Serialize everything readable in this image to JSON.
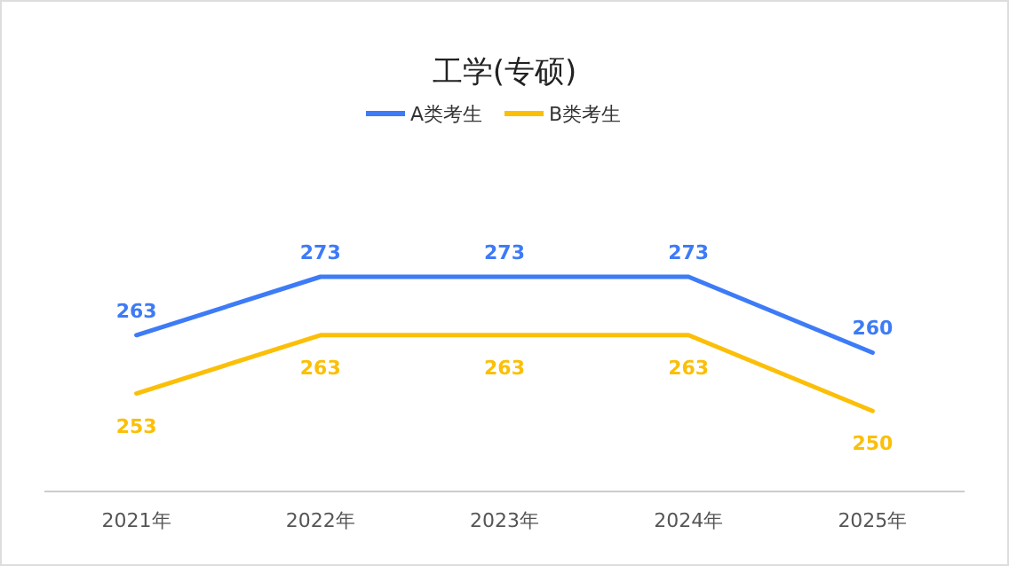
{
  "chart_data": {
    "type": "line",
    "title": "工学(专硕)",
    "categories": [
      "2021年",
      "2022年",
      "2023年",
      "2024年",
      "2025年"
    ],
    "series": [
      {
        "name": "A类考生",
        "color": "#3d7bf7",
        "values": [
          263,
          273,
          273,
          273,
          260
        ]
      },
      {
        "name": "B类考生",
        "color": "#fbbf07",
        "values": [
          253,
          263,
          263,
          263,
          250
        ]
      }
    ],
    "data_labels": true,
    "legend": "top",
    "grid": false
  }
}
